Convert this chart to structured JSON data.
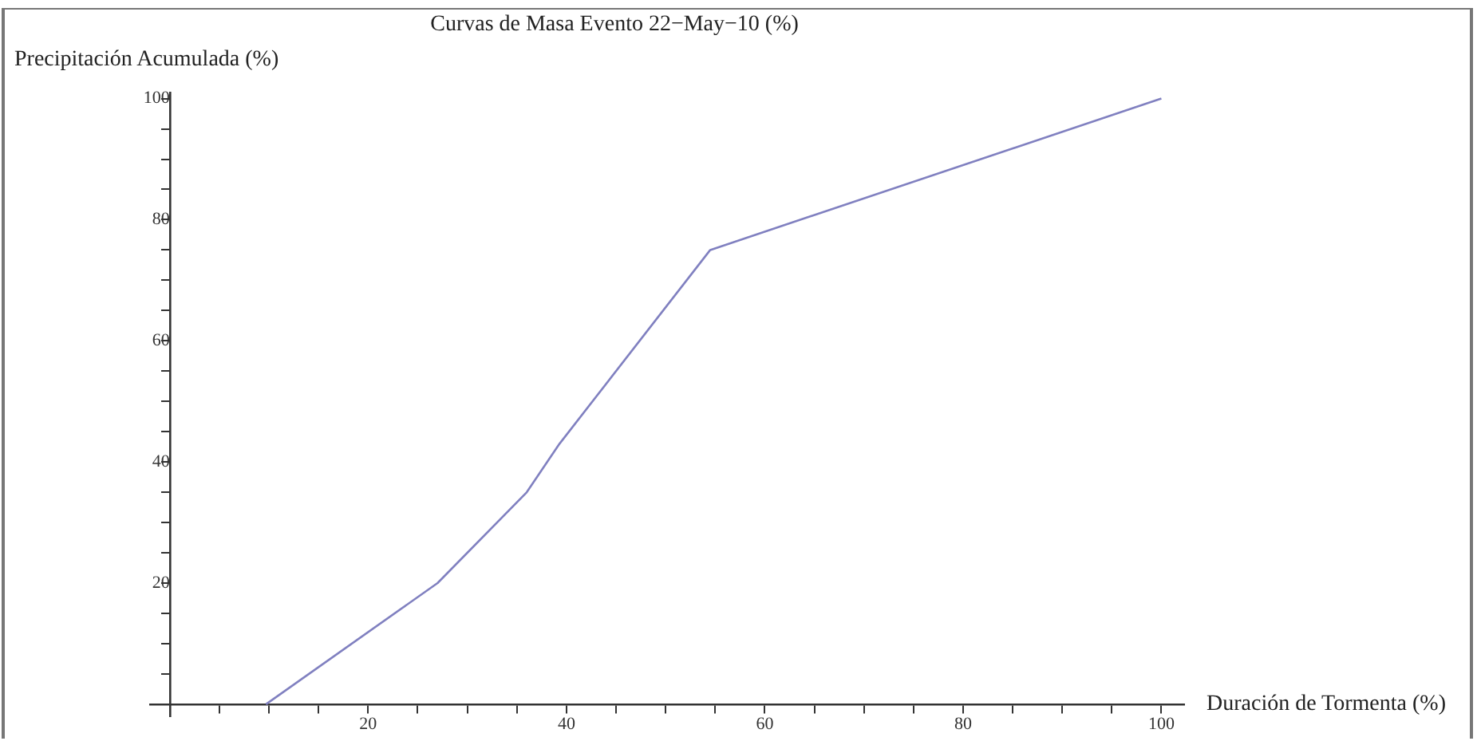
{
  "chart_data": {
    "type": "line",
    "title": "Curvas de Masa Evento 22−May−10 (%)",
    "xlabel": "Duración de Tormenta (%)",
    "ylabel": "Precipitación Acumulada (%)",
    "x": [
      9.7,
      27,
      36,
      39.3,
      54.5,
      100
    ],
    "series": [
      {
        "color": "#8080c0",
        "values": [
          0,
          20,
          35,
          43,
          75,
          100
        ]
      }
    ],
    "xlim": [
      -2,
      102.3
    ],
    "ylim": [
      -2,
      101
    ],
    "xticks": [
      {
        "value": 5,
        "label": null
      },
      {
        "value": 10,
        "label": null
      },
      {
        "value": 15,
        "label": null
      },
      20,
      {
        "value": 25,
        "label": null
      },
      {
        "value": 30,
        "label": null
      },
      {
        "value": 35,
        "label": null
      },
      40,
      {
        "value": 45,
        "label": null
      },
      {
        "value": 50,
        "label": null
      },
      {
        "value": 55,
        "label": null
      },
      60,
      {
        "value": 65,
        "label": null
      },
      {
        "value": 70,
        "label": null
      },
      {
        "value": 75,
        "label": null
      },
      80,
      {
        "value": 85,
        "label": null
      },
      {
        "value": 90,
        "label": null
      },
      {
        "value": 95,
        "label": null
      },
      100
    ],
    "yticks": [
      {
        "value": 5,
        "label": null
      },
      {
        "value": 10,
        "label": null
      },
      {
        "value": 15,
        "label": null
      },
      20,
      {
        "value": 25,
        "label": null
      },
      {
        "value": 30,
        "label": null
      },
      {
        "value": 35,
        "label": null
      },
      40,
      {
        "value": 45,
        "label": null
      },
      {
        "value": 50,
        "label": null
      },
      {
        "value": 55,
        "label": null
      },
      60,
      {
        "value": 65,
        "label": null
      },
      {
        "value": 70,
        "label": null
      },
      {
        "value": 75,
        "label": null
      },
      80,
      {
        "value": 85,
        "label": null
      },
      {
        "value": 90,
        "label": null
      },
      {
        "value": 95,
        "label": null
      },
      100
    ],
    "grid": false,
    "legend": false,
    "marker": "none",
    "line_style": "solid"
  }
}
